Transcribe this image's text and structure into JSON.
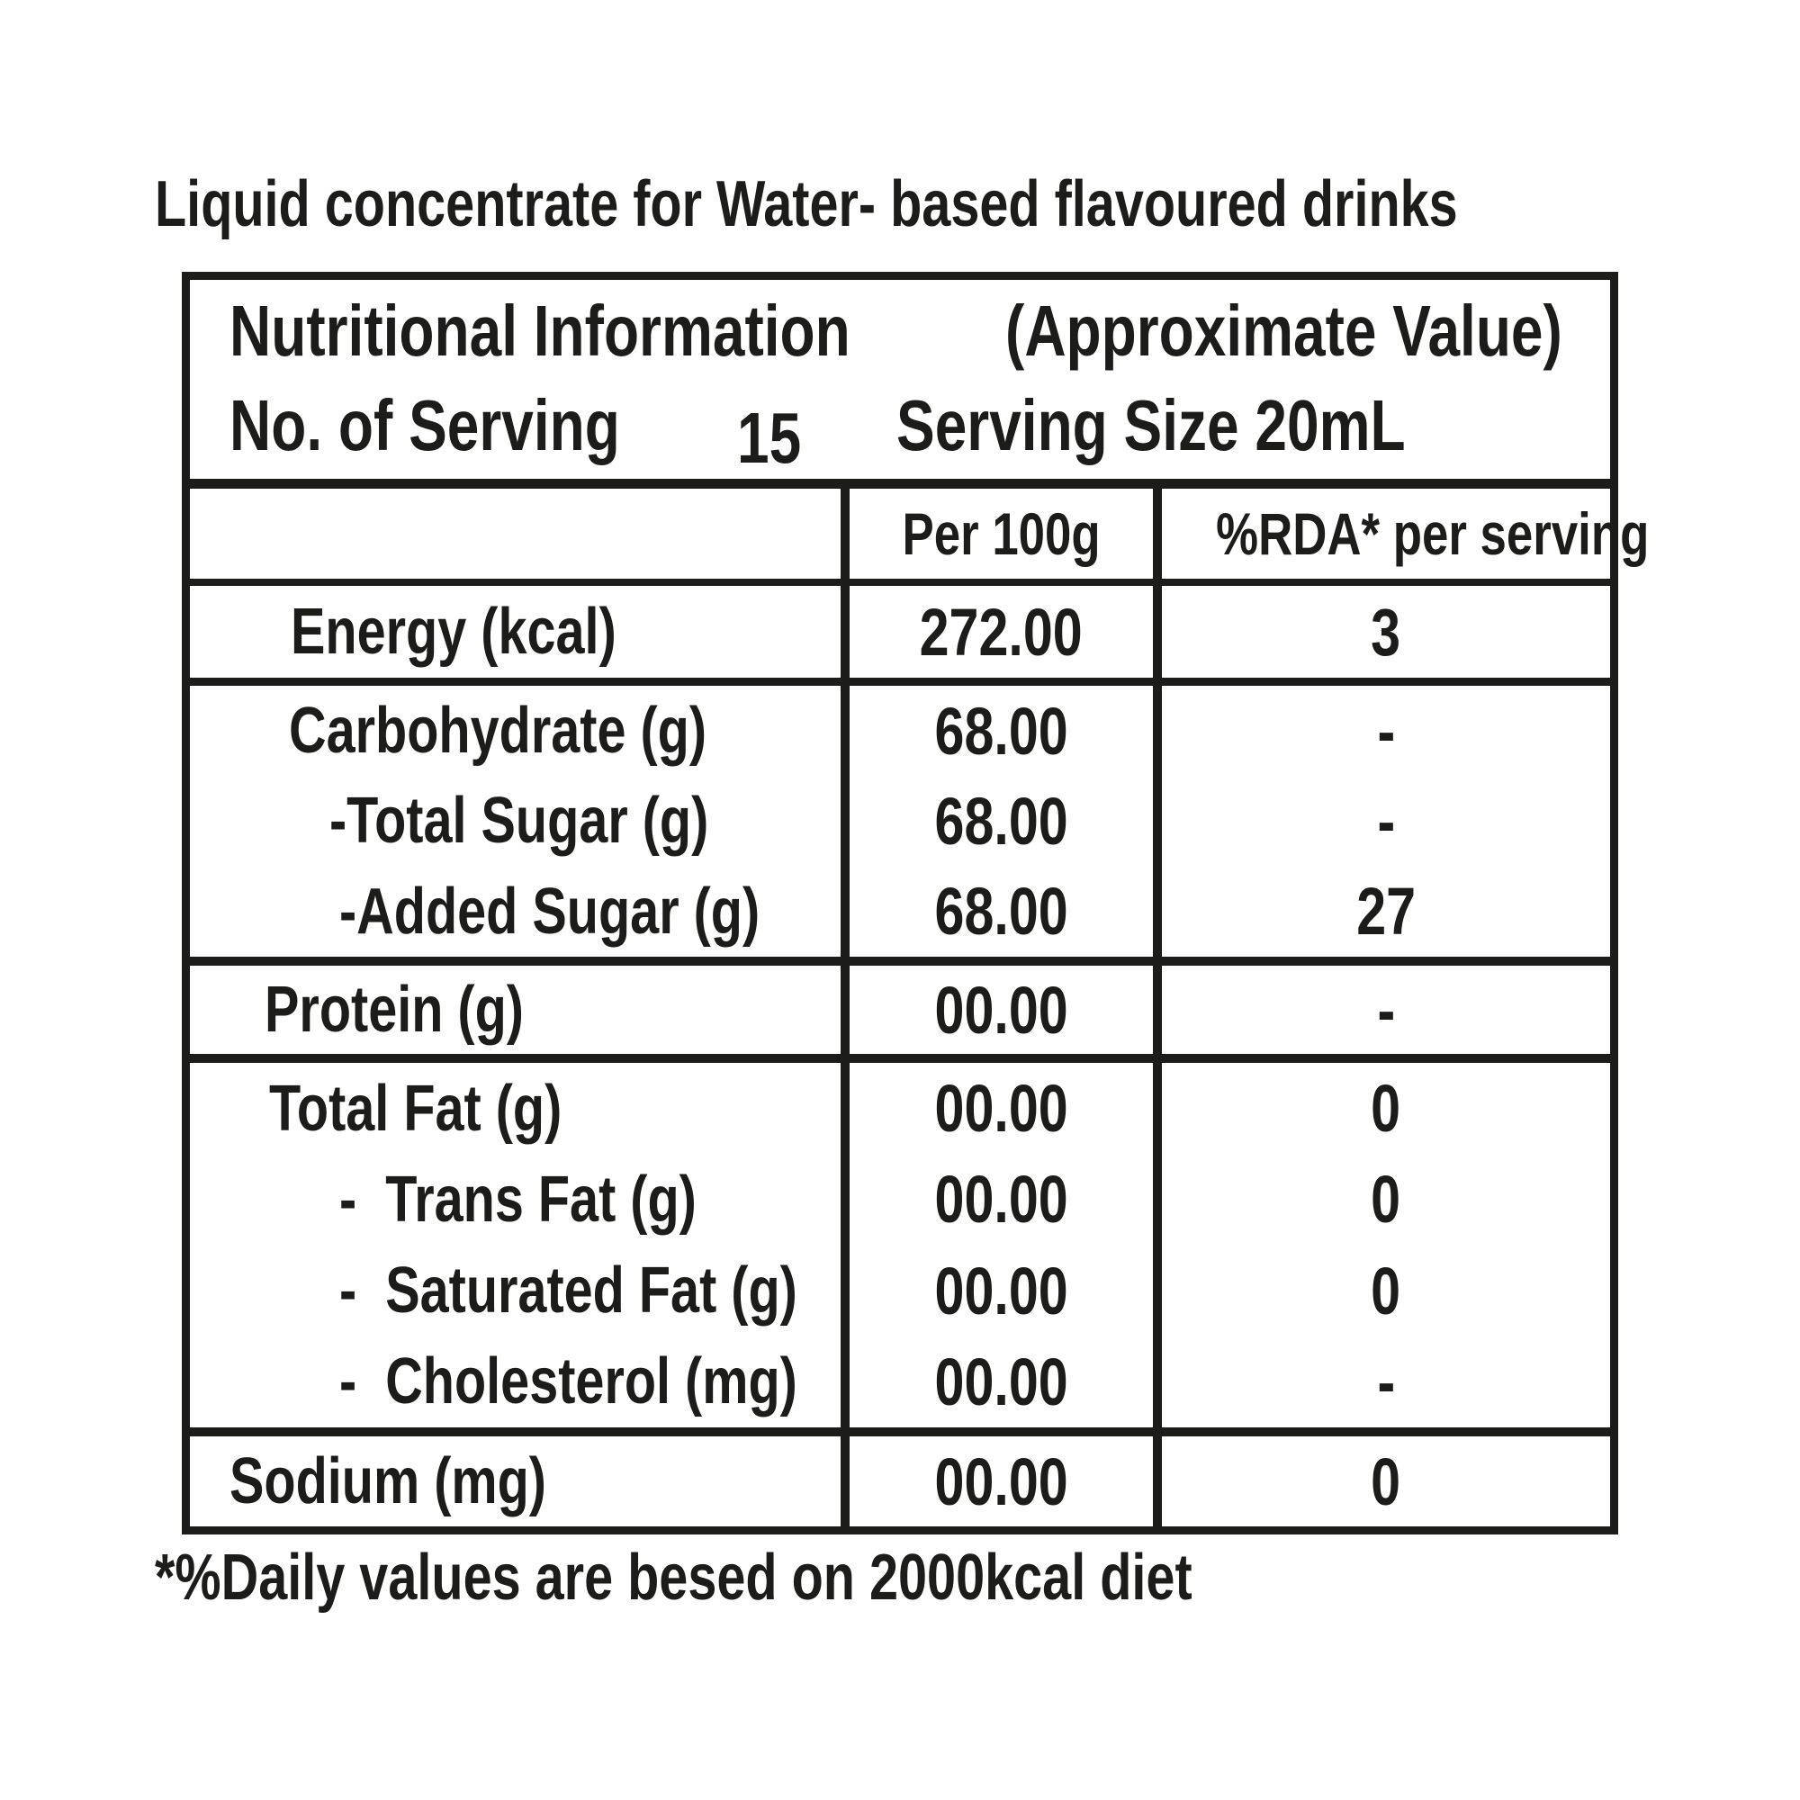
{
  "title": "Liquid concentrate for Water- based flavoured drinks",
  "footnote": "*%Daily values are besed on 2000kcal diet",
  "colors": {
    "ink": "#1c1c1b",
    "background": "#ffffff"
  },
  "table": {
    "header": {
      "title_left": "Nutritional Information",
      "title_right": "(Approximate Value)",
      "servings_label": "No. of Serving",
      "servings_value": "15",
      "serving_size": "Serving Size 20mL"
    },
    "columns": {
      "per100g": "Per 100g",
      "rda": "%RDA* per serving"
    },
    "groups": [
      {
        "rows": [
          {
            "label": "Energy (kcal)",
            "per100g": "272.00",
            "rda": "3"
          }
        ]
      },
      {
        "rows": [
          {
            "label": "Carbohydrate (g)",
            "per100g": "68.00",
            "rda": "-"
          },
          {
            "label": "-Total Sugar (g)",
            "per100g": "68.00",
            "rda": "-"
          },
          {
            "label": "-Added Sugar (g)",
            "per100g": "68.00",
            "rda": "27"
          }
        ]
      },
      {
        "rows": [
          {
            "label": "Protein (g)",
            "per100g": "00.00",
            "rda": "-"
          }
        ]
      },
      {
        "rows": [
          {
            "label": "-  Trans Fat (g)",
            "label_main": "Total Fat (g)",
            "per100g": "00.00",
            "rda": "0"
          },
          {
            "label": "-  Trans Fat (g)",
            "per100g": "00.00",
            "rda": "0"
          },
          {
            "label": "-  Saturated Fat (g)",
            "per100g": "00.00",
            "rda": "0"
          },
          {
            "label": "-  Cholesterol (mg)",
            "per100g": "00.00",
            "rda": "-"
          }
        ]
      },
      {
        "rows": [
          {
            "label": "Sodium (mg)",
            "per100g": "00.00",
            "rda": "0"
          }
        ]
      }
    ]
  }
}
